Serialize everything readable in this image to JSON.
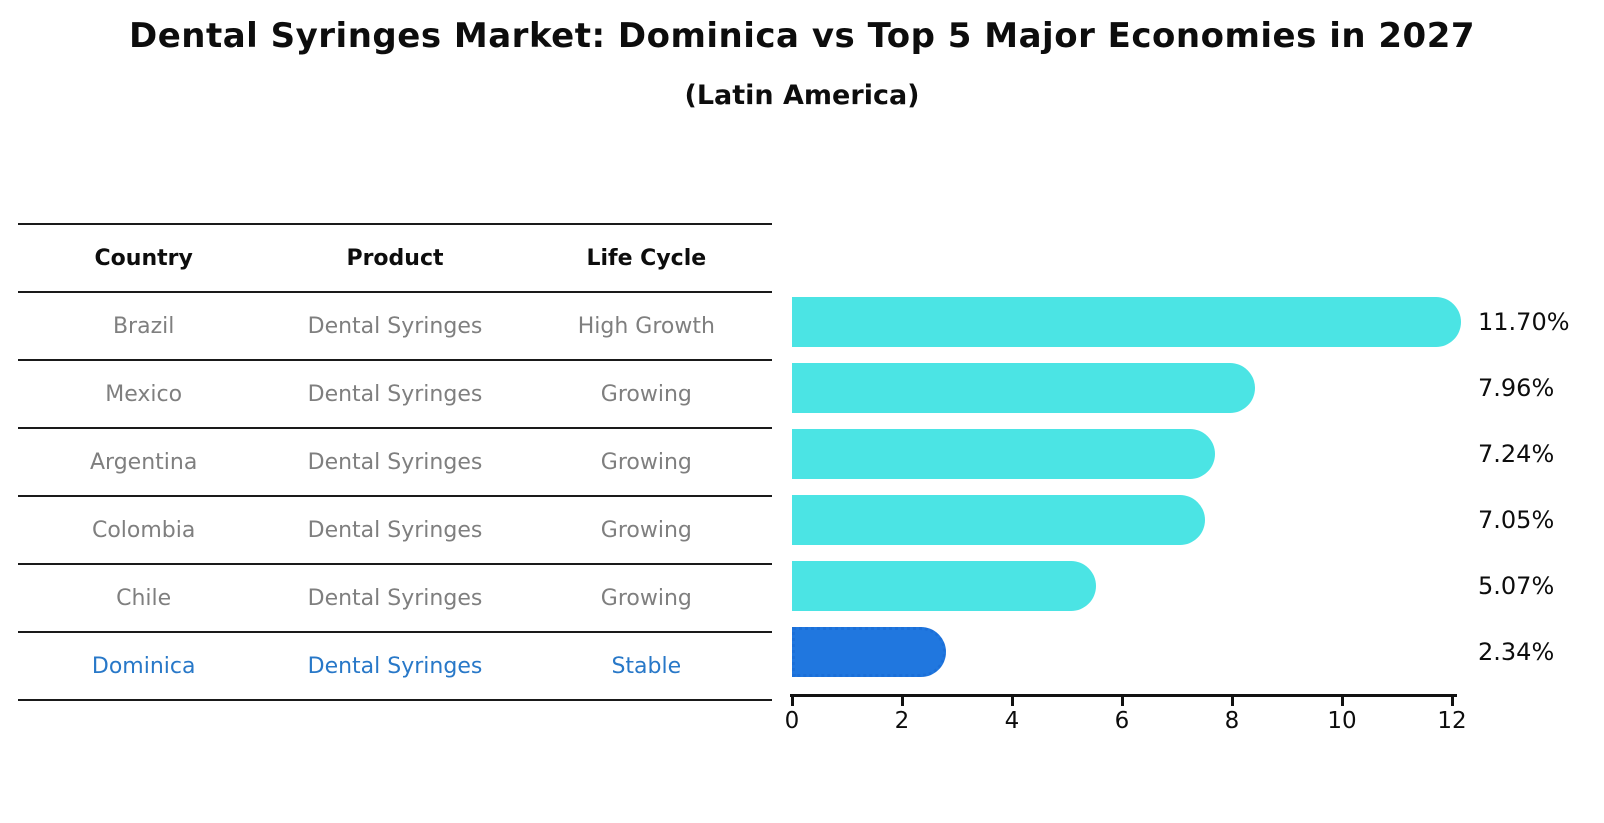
{
  "figure": {
    "title": "Dental Syringes Market: Dominica vs Top 5 Major Economies in 2027",
    "subtitle": "(Latin America)"
  },
  "table": {
    "headers": [
      "Country",
      "Product",
      "Life Cycle"
    ],
    "rows": [
      {
        "country": "Brazil",
        "product": "Dental Syringes",
        "life_cycle": "High Growth",
        "highlight": false
      },
      {
        "country": "Mexico",
        "product": "Dental Syringes",
        "life_cycle": "Growing",
        "highlight": false
      },
      {
        "country": "Argentina",
        "product": "Dental Syringes",
        "life_cycle": "Growing",
        "highlight": false
      },
      {
        "country": "Colombia",
        "product": "Dental Syringes",
        "life_cycle": "Growing",
        "highlight": false
      },
      {
        "country": "Chile",
        "product": "Dental Syringes",
        "life_cycle": "Growing",
        "highlight": false
      },
      {
        "country": "Dominica",
        "product": "Dental Syringes",
        "life_cycle": "Stable",
        "highlight": true
      }
    ]
  },
  "chart_data": {
    "type": "bar",
    "orientation": "horizontal",
    "title": "Dental Syringes Market: Dominica vs Top 5 Major Economies in 2027",
    "subtitle": "(Latin America)",
    "categories": [
      "Brazil",
      "Mexico",
      "Argentina",
      "Colombia",
      "Chile",
      "Dominica"
    ],
    "values": [
      11.7,
      7.96,
      7.24,
      7.05,
      5.07,
      2.34
    ],
    "value_labels": [
      "11.70%",
      "7.96%",
      "7.24%",
      "7.05%",
      "5.07%",
      "2.34%"
    ],
    "xlabel": "",
    "ylabel": "",
    "xlim": [
      0,
      12
    ],
    "x_ticks": [
      "0",
      "2",
      "4",
      "6",
      "8",
      "10",
      "12"
    ],
    "grid": false,
    "legend": false,
    "highlight_index": 5
  },
  "colors": {
    "bar": "#4BE4E4",
    "highlight_bar": "#2077DF",
    "highlight_border": "#1B6FD8",
    "highlight_text": "#2878C8",
    "muted_text": "#7F7F7F",
    "heading_text": "#0D0D0D",
    "axis": "#111111"
  }
}
